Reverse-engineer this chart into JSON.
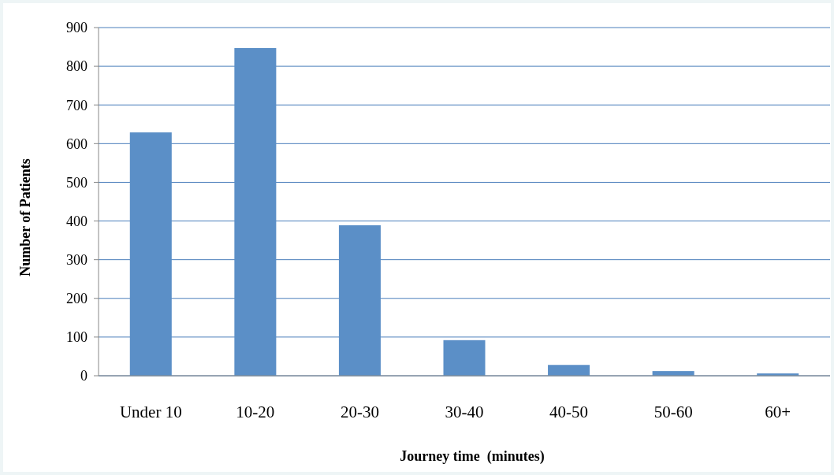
{
  "chart_data": {
    "type": "bar",
    "xlabel": "Journey time  (minutes)",
    "ylabel": "Number of Patients",
    "categories": [
      "Under 10",
      "10-20",
      "20-30",
      "30-40",
      "40-50",
      "50-60",
      "60+"
    ],
    "values": [
      629,
      847,
      389,
      92,
      28,
      12,
      6
    ],
    "color": "#5b8fc7",
    "ylim": [
      0,
      900
    ],
    "yticks": [
      0,
      100,
      200,
      300,
      400,
      500,
      600,
      700,
      800,
      900
    ],
    "grid": "y"
  }
}
